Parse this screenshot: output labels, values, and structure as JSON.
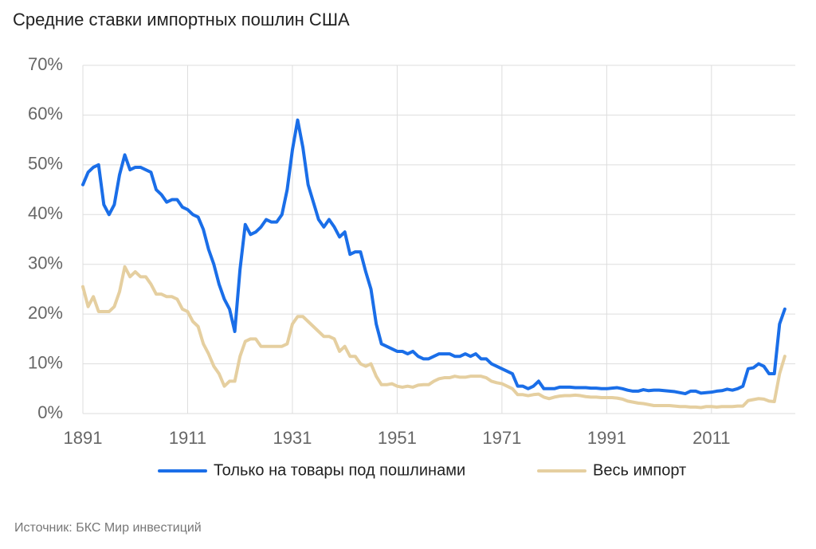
{
  "chart_data": {
    "type": "line",
    "title": "Средние ставки импортных пошлин США",
    "source": "Источник: БКС Мир инвестиций",
    "x": [
      1891,
      1892,
      1893,
      1894,
      1895,
      1896,
      1897,
      1898,
      1899,
      1900,
      1901,
      1902,
      1903,
      1904,
      1905,
      1906,
      1907,
      1908,
      1909,
      1910,
      1911,
      1912,
      1913,
      1914,
      1915,
      1916,
      1917,
      1918,
      1919,
      1920,
      1921,
      1922,
      1923,
      1924,
      1925,
      1926,
      1927,
      1928,
      1929,
      1930,
      1931,
      1932,
      1933,
      1934,
      1935,
      1936,
      1937,
      1938,
      1939,
      1940,
      1941,
      1942,
      1943,
      1944,
      1945,
      1946,
      1947,
      1948,
      1949,
      1950,
      1951,
      1952,
      1953,
      1954,
      1955,
      1956,
      1957,
      1958,
      1959,
      1960,
      1961,
      1962,
      1963,
      1964,
      1965,
      1966,
      1967,
      1968,
      1969,
      1970,
      1971,
      1972,
      1973,
      1974,
      1975,
      1976,
      1977,
      1978,
      1979,
      1980,
      1981,
      1982,
      1983,
      1984,
      1985,
      1986,
      1987,
      1988,
      1989,
      1990,
      1991,
      1992,
      1993,
      1994,
      1995,
      1996,
      1997,
      1998,
      1999,
      2000,
      2001,
      2002,
      2003,
      2004,
      2005,
      2006,
      2007,
      2008,
      2009,
      2010,
      2011,
      2012,
      2013,
      2014,
      2015,
      2016,
      2017,
      2018,
      2019,
      2020,
      2021,
      2022,
      2023,
      2024,
      2025
    ],
    "series": [
      {
        "name": "Только на товары под пошлинами",
        "color": "#1a6ee8",
        "values": [
          46,
          48.5,
          49.5,
          50,
          42,
          40,
          42,
          48,
          52,
          49,
          49.5,
          49.5,
          49,
          48.5,
          45,
          44,
          42.5,
          43,
          43,
          41.5,
          41,
          40,
          39.5,
          37,
          33,
          30,
          26,
          23,
          21,
          16.5,
          29,
          38,
          36,
          36.5,
          37.5,
          39,
          38.5,
          38.5,
          40,
          45,
          53,
          59,
          53.5,
          46,
          42.5,
          39,
          37.5,
          39,
          37.5,
          35.5,
          36.5,
          32,
          32.5,
          32.5,
          28.5,
          25,
          18,
          14,
          13.5,
          13,
          12.5,
          12.5,
          12,
          12.5,
          11.5,
          11,
          11,
          11.5,
          12,
          12,
          12,
          11.5,
          11.5,
          12,
          11.5,
          12,
          11,
          11,
          10,
          9.5,
          9,
          8.5,
          8,
          5.5,
          5.5,
          5,
          5.5,
          6.5,
          5,
          5,
          5,
          5.3,
          5.3,
          5.3,
          5.2,
          5.2,
          5.2,
          5.1,
          5.1,
          5,
          5,
          5.1,
          5.2,
          5,
          4.7,
          4.5,
          4.5,
          4.8,
          4.6,
          4.7,
          4.7,
          4.6,
          4.5,
          4.4,
          4.2,
          4,
          4.5,
          4.5,
          4.1,
          4.2,
          4.3,
          4.5,
          4.6,
          4.9,
          4.7,
          5,
          5.5,
          9,
          9.2,
          10,
          9.5,
          8,
          8,
          18,
          21
        ]
      },
      {
        "name": "Весь импорт",
        "color": "#e5cfa0",
        "values": [
          25.5,
          21.5,
          23.5,
          20.5,
          20.5,
          20.5,
          21.5,
          24.5,
          29.5,
          27.5,
          28.5,
          27.5,
          27.5,
          26,
          24,
          24,
          23.5,
          23.5,
          23,
          21,
          20.5,
          18.5,
          17.5,
          14,
          12,
          9.5,
          8,
          5.5,
          6.5,
          6.5,
          11.5,
          14.5,
          15,
          15,
          13.5,
          13.5,
          13.5,
          13.5,
          13.5,
          14,
          18,
          19.5,
          19.5,
          18.5,
          17.5,
          16.5,
          15.5,
          15.5,
          15,
          12.5,
          13.5,
          11.5,
          11.5,
          10,
          9.5,
          10,
          7.5,
          5.8,
          5.8,
          6,
          5.5,
          5.3,
          5.5,
          5.3,
          5.7,
          5.8,
          5.8,
          6.5,
          7,
          7.2,
          7.2,
          7.5,
          7.3,
          7.3,
          7.5,
          7.5,
          7.5,
          7.2,
          6.5,
          6.2,
          6,
          5.5,
          5,
          3.8,
          3.8,
          3.6,
          3.8,
          3.9,
          3.3,
          3,
          3.3,
          3.5,
          3.6,
          3.6,
          3.7,
          3.6,
          3.4,
          3.3,
          3.3,
          3.2,
          3.2,
          3.2,
          3.1,
          2.9,
          2.5,
          2.3,
          2.1,
          2,
          1.8,
          1.6,
          1.6,
          1.6,
          1.6,
          1.5,
          1.4,
          1.4,
          1.3,
          1.3,
          1.2,
          1.4,
          1.4,
          1.3,
          1.4,
          1.4,
          1.4,
          1.5,
          1.5,
          2.6,
          2.8,
          3,
          2.9,
          2.5,
          2.4,
          8,
          11.5
        ]
      }
    ],
    "xlim": [
      1891,
      2027
    ],
    "xticks": [
      1891,
      1911,
      1931,
      1951,
      1971,
      1991,
      2011
    ],
    "ylim": [
      0,
      70
    ],
    "yticks": [
      {
        "value": 0,
        "label": "0%"
      },
      {
        "value": 10,
        "label": "10%"
      },
      {
        "value": 20,
        "label": "20%"
      },
      {
        "value": 30,
        "label": "30%"
      },
      {
        "value": 40,
        "label": "40%"
      },
      {
        "value": 50,
        "label": "50%"
      },
      {
        "value": 60,
        "label": "60%"
      },
      {
        "value": 70,
        "label": "70%"
      }
    ],
    "grid": true
  }
}
